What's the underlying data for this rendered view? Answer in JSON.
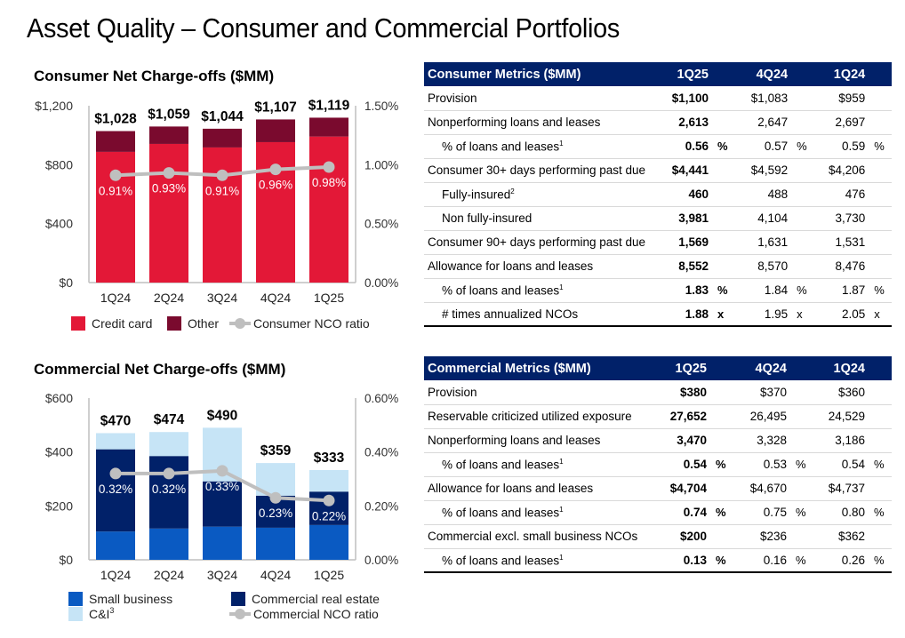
{
  "page": {
    "title": "Asset Quality – Consumer and Commercial Portfolios"
  },
  "chart_data": [
    {
      "type": "bar",
      "stacked": true,
      "title": "Consumer Net Charge-offs ($MM)",
      "categories": [
        "1Q24",
        "2Q24",
        "3Q24",
        "4Q24",
        "1Q25"
      ],
      "series": [
        {
          "name": "Credit card",
          "color": "#e31837",
          "values": [
            887,
            941,
            917,
            953,
            991
          ]
        },
        {
          "name": "Other",
          "color": "#7a0a2e",
          "values": [
            141,
            118,
            127,
            154,
            128
          ]
        }
      ],
      "totals": [
        1028,
        1059,
        1044,
        1107,
        1119
      ],
      "total_labels": [
        "$1,028",
        "$1,059",
        "$1,044",
        "$1,107",
        "$1,119"
      ],
      "line_series": {
        "name": "Consumer NCO ratio",
        "color": "#bfbfbf",
        "values": [
          0.91,
          0.93,
          0.91,
          0.96,
          0.98
        ],
        "labels": [
          "0.91%",
          "0.93%",
          "0.91%",
          "0.96%",
          "0.98%"
        ]
      },
      "ylim": [
        0,
        1200
      ],
      "yticks": [
        "$0",
        "$400",
        "$800",
        "$1,200"
      ],
      "y2lim": [
        0,
        1.5
      ],
      "y2ticks": [
        "0.00%",
        "0.50%",
        "1.00%",
        "1.50%"
      ],
      "legend": [
        "Credit card",
        "Other",
        "Consumer NCO ratio"
      ],
      "legend_position": "bottom"
    },
    {
      "type": "bar",
      "stacked": true,
      "title": "Commercial Net Charge-offs ($MM)",
      "categories": [
        "1Q24",
        "2Q24",
        "3Q24",
        "4Q24",
        "1Q25"
      ],
      "series": [
        {
          "name": "Small business",
          "color": "#0a5ac2",
          "values": [
            105,
            116,
            123,
            119,
            129
          ]
        },
        {
          "name": "Commercial real estate",
          "color": "#012169",
          "values": [
            305,
            269,
            168,
            119,
            124
          ]
        },
        {
          "name": "C&I",
          "footnote": "3",
          "color": "#c6e4f6",
          "values": [
            60,
            89,
            199,
            121,
            80
          ]
        }
      ],
      "totals": [
        470,
        474,
        490,
        359,
        333
      ],
      "total_labels": [
        "$470",
        "$474",
        "$490",
        "$359",
        "$333"
      ],
      "line_series": {
        "name": "Commercial NCO ratio",
        "color": "#bfbfbf",
        "values": [
          0.32,
          0.32,
          0.33,
          0.23,
          0.22
        ],
        "labels": [
          "0.32%",
          "0.32%",
          "0.33%",
          "0.23%",
          "0.22%"
        ]
      },
      "ylim": [
        0,
        600
      ],
      "yticks": [
        "$0",
        "$200",
        "$400",
        "$600"
      ],
      "y2lim": [
        0,
        0.6
      ],
      "y2ticks": [
        "0.00%",
        "0.20%",
        "0.40%",
        "0.60%"
      ],
      "legend": [
        "Small business",
        "C&I",
        "Commercial real estate",
        "Commercial NCO ratio"
      ],
      "legend_position": "bottom"
    }
  ],
  "consumer_table": {
    "header": [
      "Consumer Metrics ($MM)",
      "1Q25",
      "4Q24",
      "1Q24"
    ],
    "rows": [
      {
        "label": "Provision",
        "indent": false,
        "sup": "",
        "values": [
          "$1,100",
          "$1,083",
          "$959"
        ],
        "unit": ""
      },
      {
        "label": "Nonperforming loans and leases",
        "indent": false,
        "sup": "",
        "values": [
          "2,613",
          "2,647",
          "2,697"
        ],
        "unit": ""
      },
      {
        "label": "% of loans and leases",
        "indent": true,
        "sup": "1",
        "values": [
          "0.56",
          "0.57",
          "0.59"
        ],
        "unit": "%"
      },
      {
        "label": "Consumer 30+ days performing past due",
        "indent": false,
        "sup": "",
        "values": [
          "$4,441",
          "$4,592",
          "$4,206"
        ],
        "unit": ""
      },
      {
        "label": "Fully-insured",
        "indent": true,
        "sup": "2",
        "values": [
          "460",
          "488",
          "476"
        ],
        "unit": ""
      },
      {
        "label": "Non fully-insured",
        "indent": true,
        "sup": "",
        "values": [
          "3,981",
          "4,104",
          "3,730"
        ],
        "unit": ""
      },
      {
        "label": "Consumer 90+ days performing past due",
        "indent": false,
        "sup": "",
        "values": [
          "1,569",
          "1,631",
          "1,531"
        ],
        "unit": ""
      },
      {
        "label": "Allowance for loans and leases",
        "indent": false,
        "sup": "",
        "values": [
          "8,552",
          "8,570",
          "8,476"
        ],
        "unit": ""
      },
      {
        "label": "% of loans and leases",
        "indent": true,
        "sup": "1",
        "values": [
          "1.83",
          "1.84",
          "1.87"
        ],
        "unit": "%"
      },
      {
        "label": "# times annualized NCOs",
        "indent": true,
        "sup": "",
        "values": [
          "1.88",
          "1.95",
          "2.05"
        ],
        "unit": "x"
      }
    ]
  },
  "commercial_table": {
    "header": [
      "Commercial Metrics ($MM)",
      "1Q25",
      "4Q24",
      "1Q24"
    ],
    "rows": [
      {
        "label": "Provision",
        "indent": false,
        "sup": "",
        "values": [
          "$380",
          "$370",
          "$360"
        ],
        "unit": ""
      },
      {
        "label": "Reservable criticized utilized exposure",
        "indent": false,
        "sup": "",
        "values": [
          "27,652",
          "26,495",
          "24,529"
        ],
        "unit": ""
      },
      {
        "label": "Nonperforming loans and leases",
        "indent": false,
        "sup": "",
        "values": [
          "3,470",
          "3,328",
          "3,186"
        ],
        "unit": ""
      },
      {
        "label": "% of loans and leases",
        "indent": true,
        "sup": "1",
        "values": [
          "0.54",
          "0.53",
          "0.54"
        ],
        "unit": "%"
      },
      {
        "label": "Allowance for loans and leases",
        "indent": false,
        "sup": "",
        "values": [
          "$4,704",
          "$4,670",
          "$4,737"
        ],
        "unit": ""
      },
      {
        "label": "% of loans and leases",
        "indent": true,
        "sup": "1",
        "values": [
          "0.74",
          "0.75",
          "0.80"
        ],
        "unit": "%"
      },
      {
        "label": "Commercial excl. small business NCOs",
        "indent": false,
        "sup": "",
        "values": [
          "$200",
          "$236",
          "$362"
        ],
        "unit": ""
      },
      {
        "label": "% of loans and leases",
        "indent": true,
        "sup": "1",
        "values": [
          "0.13",
          "0.16",
          "0.26"
        ],
        "unit": "%"
      }
    ]
  }
}
